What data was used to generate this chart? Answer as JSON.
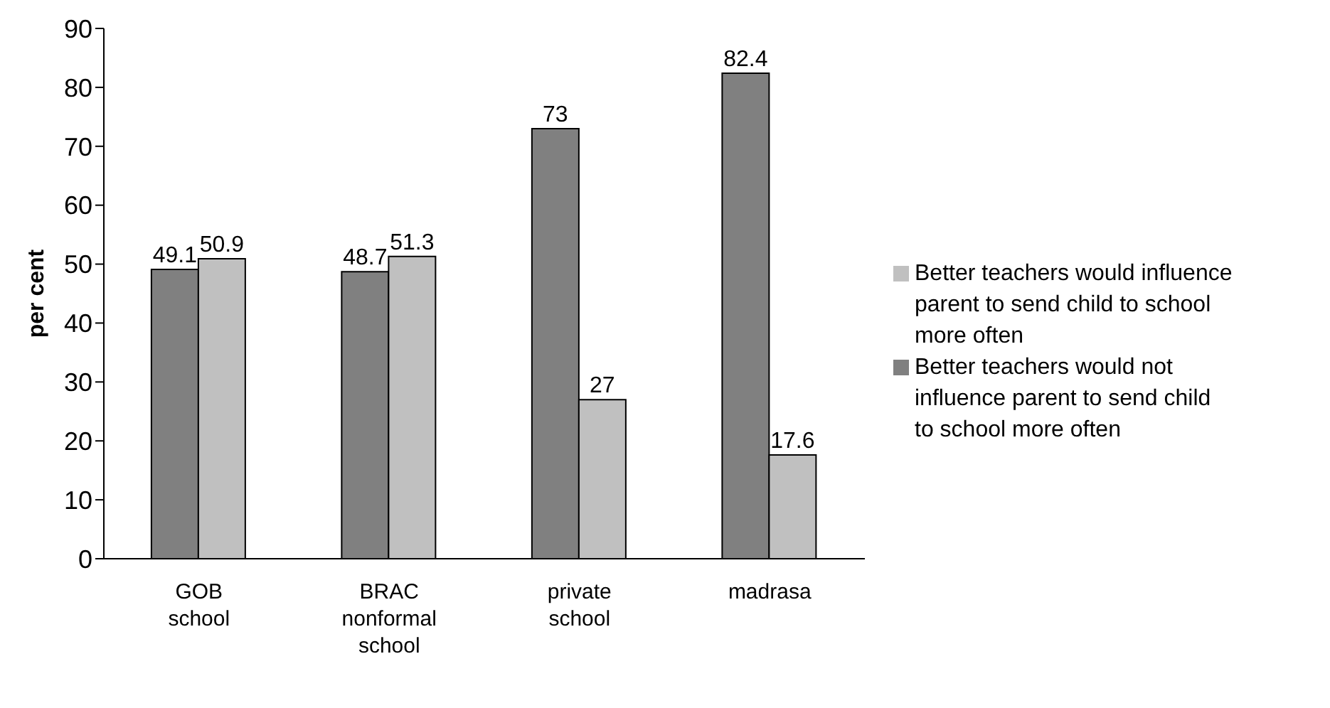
{
  "chart_data": {
    "type": "bar",
    "ylabel": "per cent",
    "categories": [
      "GOB\nschool",
      "BRAC\nnonformal\nschool",
      "private\nschool",
      "madrasa"
    ],
    "series": [
      {
        "name": "Better teachers would not influence parent to send child to school more often",
        "color": "#808080",
        "values": [
          49.1,
          48.7,
          73,
          82.4
        ]
      },
      {
        "name": "Better teachers would influence parent to send child to school more often",
        "color": "#c0c0c0",
        "values": [
          50.9,
          51.3,
          27,
          17.6
        ]
      }
    ],
    "ylim": [
      0,
      90
    ],
    "yticks": [
      0,
      10,
      20,
      30,
      40,
      50,
      60,
      70,
      80,
      90
    ],
    "grid": false,
    "legend": "right",
    "data_labels": true
  }
}
